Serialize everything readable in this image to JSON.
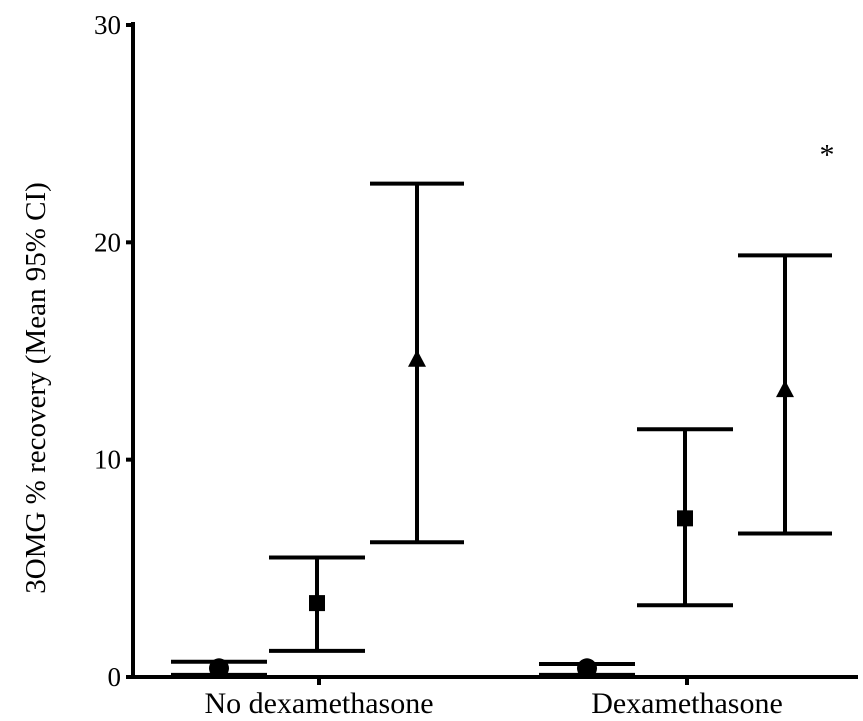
{
  "chart_data": {
    "type": "scatter",
    "title": "",
    "xlabel": "",
    "ylabel": "3OMG % recovery (Mean 95% CI)",
    "ylim": [
      0,
      30
    ],
    "y_ticks": [
      "0",
      "10",
      "20",
      "30"
    ],
    "categories": [
      "No dexamethasone",
      "Dexamethasone"
    ],
    "grid": false,
    "series": [
      {
        "marker": "circle",
        "mean": [
          0.4,
          0.4
        ],
        "ci_low": [
          0.1,
          0.1
        ],
        "ci_high": [
          0.7,
          0.6
        ]
      },
      {
        "marker": "square",
        "mean": [
          3.4,
          7.3
        ],
        "ci_low": [
          1.2,
          3.3
        ],
        "ci_high": [
          5.5,
          11.4
        ]
      },
      {
        "marker": "triangle",
        "mean": [
          14.6,
          13.2
        ],
        "ci_low": [
          6.2,
          6.6
        ],
        "ci_high": [
          22.7,
          19.4
        ]
      }
    ],
    "annotations": [
      {
        "text": "*",
        "category": "Dexamethasone",
        "y": 24.5
      }
    ]
  }
}
